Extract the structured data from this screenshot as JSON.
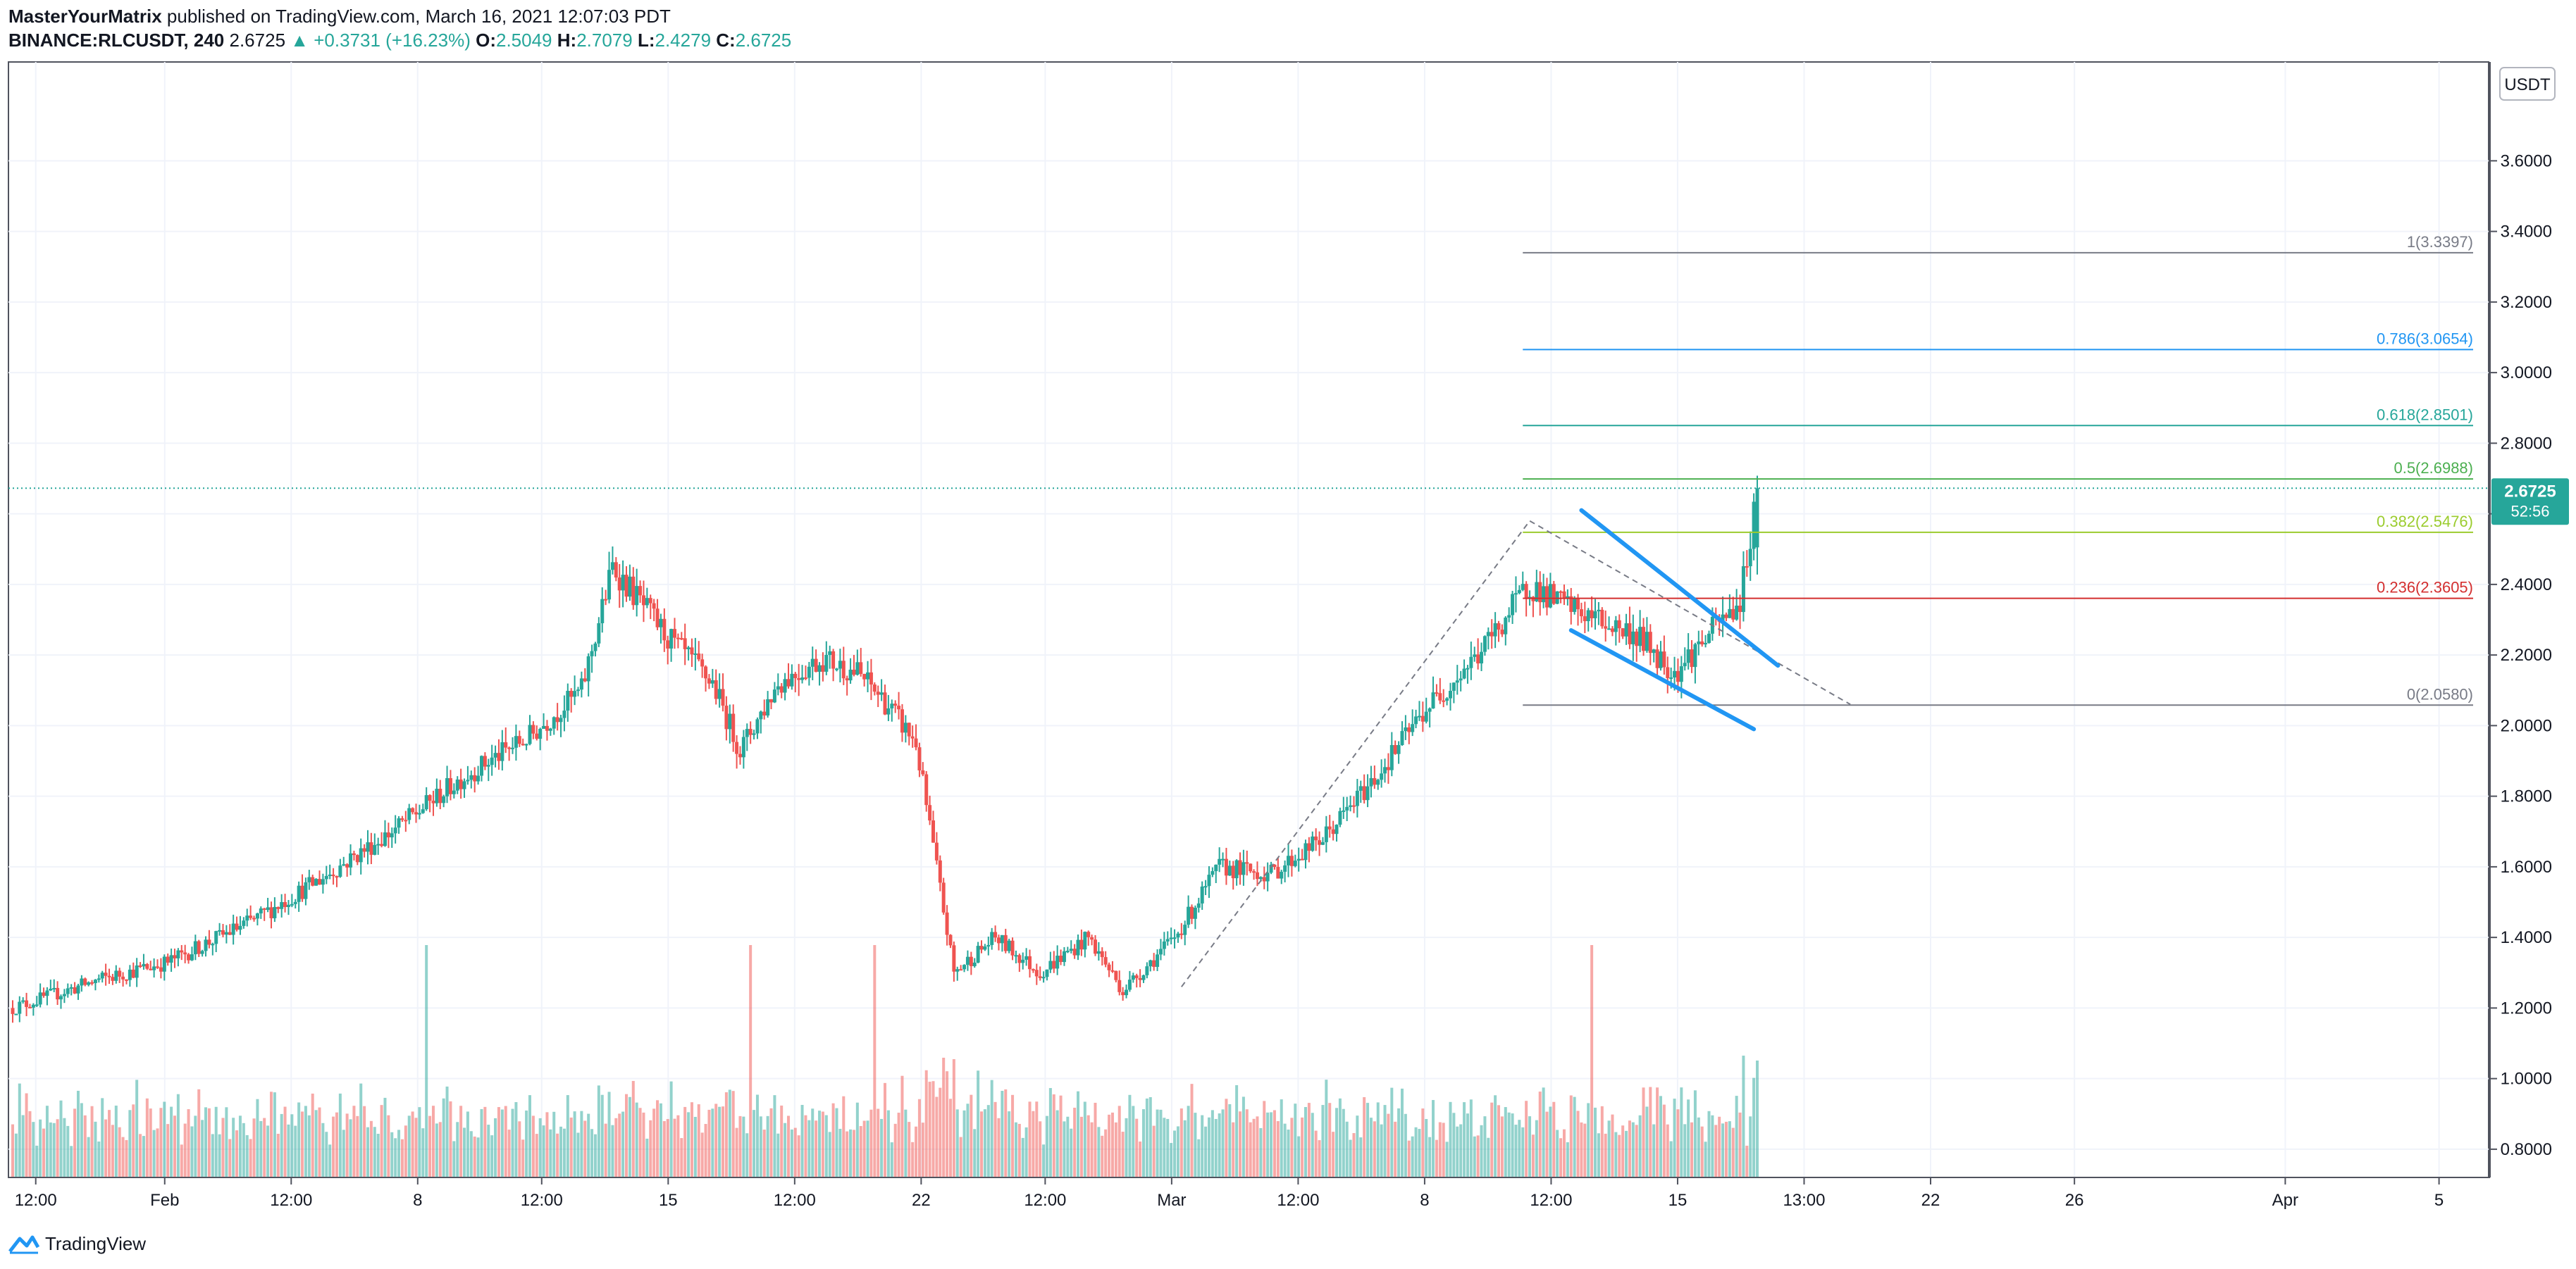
{
  "header": {
    "author": "MasterYourMatrix",
    "published": "published on TradingView.com, March 16, 2021 12:07:03 PDT",
    "symbol": "BINANCE:RLCUSDT, 240",
    "price": "2.6725",
    "change": "+0.3731 (+16.23%)",
    "o_label": "O:",
    "o_value": "2.5049",
    "h_label": "H:",
    "h_value": "2.7079",
    "l_label": "L:",
    "l_value": "2.4279",
    "c_label": "C:",
    "c_value": "2.6725"
  },
  "footer": {
    "brand": "TradingView"
  },
  "colors": {
    "up": "#26a69a",
    "down": "#ef5350",
    "grid": "#f0f3fa",
    "axis": "#787b86",
    "pattern": "#2196f3"
  },
  "chart_data": {
    "type": "candlestick",
    "currency": "USDT",
    "ylim": [
      0.72,
      3.88
    ],
    "y_ticks": [
      "3.6000",
      "3.4000",
      "3.2000",
      "3.0000",
      "2.8000",
      "2.6000",
      "2.4000",
      "2.2000",
      "2.0000",
      "1.8000",
      "1.6000",
      "1.4000",
      "1.2000",
      "1.0000",
      "0.8000"
    ],
    "x_ticks": [
      "12:00",
      "Feb",
      "12:00",
      "8",
      "12:00",
      "15",
      "12:00",
      "22",
      "12:00",
      "Mar",
      "12:00",
      "8",
      "12:00",
      "15",
      "13:00",
      "22",
      "26",
      "Apr",
      "5"
    ],
    "x_tick_fraction": [
      0.011,
      0.063,
      0.114,
      0.165,
      0.215,
      0.266,
      0.317,
      0.368,
      0.418,
      0.469,
      0.52,
      0.571,
      0.622,
      0.673,
      0.724,
      0.775,
      0.833,
      0.918,
      0.98
    ],
    "last_price": "2.6725",
    "countdown": "52:56",
    "anchors": [
      [
        0,
        1.2
      ],
      [
        25,
        1.28
      ],
      [
        45,
        1.33
      ],
      [
        70,
        1.45
      ],
      [
        90,
        1.57
      ],
      [
        110,
        1.7
      ],
      [
        130,
        1.85
      ],
      [
        150,
        1.97
      ],
      [
        165,
        2.1
      ],
      [
        174,
        2.45
      ],
      [
        190,
        2.25
      ],
      [
        203,
        2.12
      ],
      [
        211,
        1.93
      ],
      [
        222,
        2.12
      ],
      [
        235,
        2.19
      ],
      [
        245,
        2.15
      ],
      [
        252,
        2.08
      ],
      [
        262,
        1.95
      ],
      [
        273,
        1.3
      ],
      [
        285,
        1.4
      ],
      [
        298,
        1.3
      ],
      [
        312,
        1.4
      ],
      [
        322,
        1.25
      ],
      [
        337,
        1.4
      ],
      [
        350,
        1.6
      ],
      [
        365,
        1.58
      ],
      [
        380,
        1.68
      ],
      [
        395,
        1.85
      ],
      [
        410,
        2.05
      ],
      [
        425,
        2.2
      ],
      [
        440,
        2.4
      ],
      [
        448,
        2.35
      ],
      [
        460,
        2.3
      ],
      [
        472,
        2.25
      ],
      [
        482,
        2.15
      ],
      [
        493,
        2.27
      ],
      [
        501,
        2.35
      ],
      [
        506,
        2.67
      ]
    ],
    "fibonacci": [
      {
        "level": "1",
        "value": 3.3397,
        "label": "1(3.3397)",
        "color": "#787b86"
      },
      {
        "level": "0.786",
        "value": 3.0654,
        "label": "0.786(3.0654)",
        "color": "#2196f3"
      },
      {
        "level": "0.618",
        "value": 2.8501,
        "label": "0.618(2.8501)",
        "color": "#26a69a"
      },
      {
        "level": "0.5",
        "value": 2.6988,
        "label": "0.5(2.6988)",
        "color": "#4caf50"
      },
      {
        "level": "0.382",
        "value": 2.5476,
        "label": "0.382(2.5476)",
        "color": "#9bcc2e"
      },
      {
        "level": "0.236",
        "value": 2.3605,
        "label": "0.236(2.3605)",
        "color": "#d32f2f"
      },
      {
        "level": "0",
        "value": 2.058,
        "label": "0(2.0580)",
        "color": "#787b86"
      }
    ],
    "fib_range": [
      438,
      713
    ],
    "trend_line": [
      [
        339,
        1.26
      ],
      [
        440,
        2.58
      ],
      [
        533,
        2.06
      ]
    ],
    "wedge_upper": [
      [
        455,
        2.61
      ],
      [
        512,
        2.17
      ]
    ],
    "wedge_lower": [
      [
        452,
        2.27
      ],
      [
        505,
        1.99
      ]
    ]
  }
}
